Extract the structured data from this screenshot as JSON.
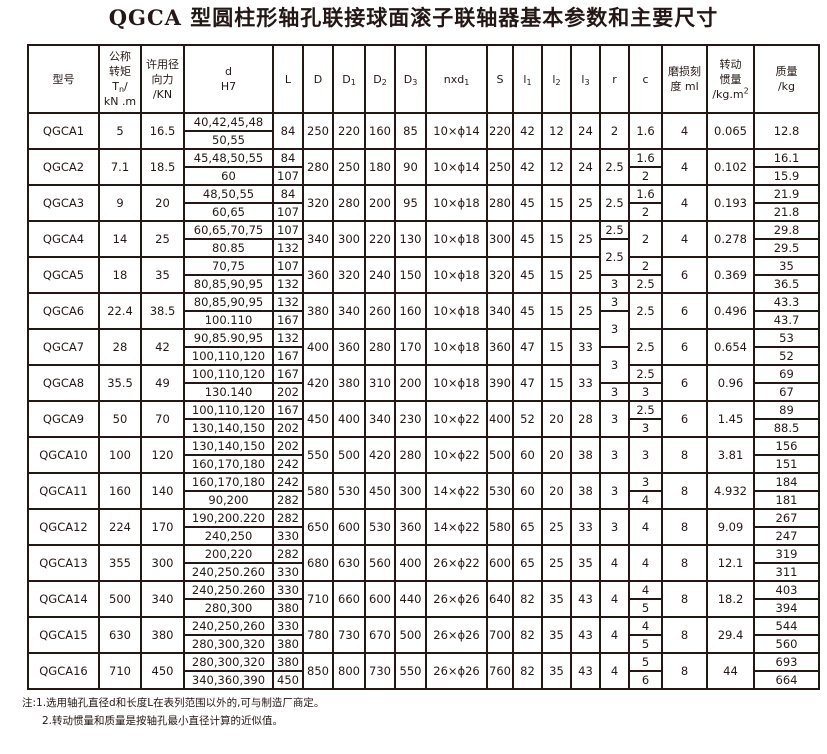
{
  "title": "QGCA 型圆柱形轴孔联接球面滚子联轴器基本参数和主要尺寸",
  "header": [
    {
      "key": "model",
      "lines": [
        [
          {
            "t": "型号"
          }
        ]
      ]
    },
    {
      "key": "tn",
      "lines": [
        [
          {
            "t": "公称"
          }
        ],
        [
          {
            "t": "转矩"
          }
        ],
        [
          {
            "t": "T"
          },
          {
            "sub": "n"
          },
          {
            "t": "/"
          }
        ],
        [
          {
            "t": "kN .m"
          }
        ]
      ]
    },
    {
      "key": "force",
      "lines": [
        [
          {
            "t": "许用径"
          }
        ],
        [
          {
            "t": "向力"
          }
        ],
        [
          {
            "t": "/KN"
          }
        ]
      ]
    },
    {
      "key": "d",
      "lines": [
        [
          {
            "t": "d"
          }
        ],
        [
          {
            "t": "H7"
          }
        ]
      ]
    },
    {
      "key": "L",
      "lines": [
        [
          {
            "t": "L"
          }
        ]
      ]
    },
    {
      "key": "D",
      "lines": [
        [
          {
            "t": "D"
          }
        ]
      ]
    },
    {
      "key": "D1",
      "lines": [
        [
          {
            "t": "D"
          },
          {
            "sub": "1"
          }
        ]
      ]
    },
    {
      "key": "D2",
      "lines": [
        [
          {
            "t": "D"
          },
          {
            "sub": "2"
          }
        ]
      ]
    },
    {
      "key": "D3",
      "lines": [
        [
          {
            "t": "D"
          },
          {
            "sub": "3"
          }
        ]
      ]
    },
    {
      "key": "nxd1",
      "lines": [
        [
          {
            "t": "nxd"
          },
          {
            "sub": "1"
          }
        ]
      ]
    },
    {
      "key": "S",
      "lines": [
        [
          {
            "t": "S"
          }
        ]
      ]
    },
    {
      "key": "l1",
      "lines": [
        [
          {
            "t": "l"
          },
          {
            "sub": "1"
          }
        ]
      ]
    },
    {
      "key": "l2",
      "lines": [
        [
          {
            "t": "l"
          },
          {
            "sub": "2"
          }
        ]
      ]
    },
    {
      "key": "l3",
      "lines": [
        [
          {
            "t": "l"
          },
          {
            "sub": "3"
          }
        ]
      ]
    },
    {
      "key": "r",
      "lines": [
        [
          {
            "t": "r"
          }
        ]
      ]
    },
    {
      "key": "c",
      "lines": [
        [
          {
            "t": "c"
          }
        ]
      ]
    },
    {
      "key": "wear",
      "lines": [
        [
          {
            "t": "磨损刻"
          }
        ],
        [
          {
            "t": "度 ml"
          }
        ]
      ]
    },
    {
      "key": "inertia",
      "lines": [
        [
          {
            "t": "转动"
          }
        ],
        [
          {
            "t": "惯量"
          }
        ],
        [
          {
            "t": "/kg.m"
          },
          {
            "sup": "2"
          }
        ]
      ]
    },
    {
      "key": "mass",
      "lines": [
        [
          {
            "t": "质量"
          }
        ],
        [
          {
            "t": "/kg"
          }
        ]
      ]
    }
  ],
  "rows": [
    {
      "model": "QGCA1",
      "tn": "5",
      "force": "16.5",
      "d": [
        "40,42,45,48",
        "50,55"
      ],
      "L": "84",
      "D": "250",
      "D1": "220",
      "D2": "160",
      "D3": "85",
      "nxd1": "10×ϕ14",
      "S": "220",
      "l1": "42",
      "l2": "12",
      "l3": "24",
      "c": "1.6",
      "wear": "4",
      "inertia": "0.065",
      "mass": "12.8"
    },
    {
      "model": "QGCA2",
      "tn": "7.1",
      "force": "18.5",
      "d": [
        "45,48,50,55",
        "60"
      ],
      "L": [
        "84",
        "107"
      ],
      "D": "280",
      "D1": "250",
      "D2": "180",
      "D3": "90",
      "nxd1": "10×ϕ14",
      "S": "250",
      "l1": "42",
      "l2": "12",
      "l3": "24",
      "c": [
        "1.6",
        "2"
      ],
      "wear": "4",
      "inertia": "0.102",
      "mass": [
        "16.1",
        "15.9"
      ]
    },
    {
      "model": "QGCA3",
      "tn": "9",
      "force": "20",
      "d": [
        "48,50,55",
        "60,65"
      ],
      "L": [
        "84",
        "107"
      ],
      "D": "320",
      "D1": "280",
      "D2": "200",
      "D3": "95",
      "nxd1": "10×ϕ18",
      "S": "280",
      "l1": "45",
      "l2": "15",
      "l3": "25",
      "c": [
        "1.6",
        "2"
      ],
      "wear": "4",
      "inertia": "0.193",
      "mass": [
        "21.9",
        "21.8"
      ]
    },
    {
      "model": "QGCA4",
      "tn": "14",
      "force": "25",
      "d": [
        "60,65,70,75",
        "80.85"
      ],
      "L": [
        "107",
        "132"
      ],
      "D": "340",
      "D1": "300",
      "D2": "220",
      "D3": "130",
      "nxd1": "10×ϕ18",
      "S": "300",
      "l1": "45",
      "l2": "15",
      "l3": "25",
      "c": "2",
      "wear": "4",
      "inertia": "0.278",
      "mass": [
        "29.8",
        "29.5"
      ]
    },
    {
      "model": "QGCA5",
      "tn": "18",
      "force": "35",
      "d": [
        "70,75",
        "80,85,90,95"
      ],
      "L": [
        "107",
        "132"
      ],
      "D": "360",
      "D1": "320",
      "D2": "240",
      "D3": "150",
      "nxd1": "10×ϕ18",
      "S": "320",
      "l1": "45",
      "l2": "15",
      "l3": "25",
      "c": [
        "2",
        "2.5"
      ],
      "wear": "6",
      "inertia": "0.369",
      "mass": [
        "35",
        "36.5"
      ]
    },
    {
      "model": "QGCA6",
      "tn": "22.4",
      "force": "38.5",
      "d": [
        "80,85,90,95",
        "100.110"
      ],
      "L": [
        "132",
        "167"
      ],
      "D": "380",
      "D1": "340",
      "D2": "260",
      "D3": "160",
      "nxd1": "10×ϕ18",
      "S": "340",
      "l1": "45",
      "l2": "15",
      "l3": "25",
      "c": "2.5",
      "wear": "6",
      "inertia": "0.496",
      "mass": [
        "43.3",
        "43.7"
      ]
    },
    {
      "model": "QGCA7",
      "tn": "28",
      "force": "42",
      "d": [
        "90,85.90,95",
        "100,110,120"
      ],
      "L": [
        "132",
        "167"
      ],
      "D": "400",
      "D1": "360",
      "D2": "280",
      "D3": "170",
      "nxd1": "10×ϕ18",
      "S": "360",
      "l1": "47",
      "l2": "15",
      "l3": "33",
      "c": "2.5",
      "wear": "6",
      "inertia": "0.654",
      "mass": [
        "53",
        "52"
      ]
    },
    {
      "model": "QGCA8",
      "tn": "35.5",
      "force": "49",
      "d": [
        "100,110,120",
        "130.140"
      ],
      "L": [
        "167",
        "202"
      ],
      "D": "420",
      "D1": "380",
      "D2": "310",
      "D3": "200",
      "nxd1": "10×ϕ18",
      "S": "390",
      "l1": "47",
      "l2": "15",
      "l3": "33",
      "c": [
        "2.5",
        "3"
      ],
      "wear": "6",
      "inertia": "0.96",
      "mass": [
        "69",
        "67"
      ]
    },
    {
      "model": "QGCA9",
      "tn": "50",
      "force": "70",
      "d": [
        "100,110,120",
        "130,140,150"
      ],
      "L": [
        "167",
        "202"
      ],
      "D": "450",
      "D1": "400",
      "D2": "340",
      "D3": "230",
      "nxd1": "10×ϕ22",
      "S": "400",
      "l1": "52",
      "l2": "20",
      "l3": "28",
      "c": [
        "2.5",
        "3"
      ],
      "wear": "6",
      "inertia": "1.45",
      "mass": [
        "89",
        "88.5"
      ]
    },
    {
      "model": "QGCA10",
      "tn": "100",
      "force": "120",
      "d": [
        "130,140,150",
        "160,170,180"
      ],
      "L": [
        "202",
        "242"
      ],
      "D": "550",
      "D1": "500",
      "D2": "420",
      "D3": "280",
      "nxd1": "10×ϕ22",
      "S": "500",
      "l1": "60",
      "l2": "20",
      "l3": "38",
      "c": "3",
      "wear": "8",
      "inertia": "3.81",
      "mass": [
        "156",
        "151"
      ]
    },
    {
      "model": "QGCA11",
      "tn": "160",
      "force": "140",
      "d": [
        "160,170,180",
        "90,200"
      ],
      "L": [
        "242",
        "282"
      ],
      "D": "580",
      "D1": "530",
      "D2": "450",
      "D3": "300",
      "nxd1": "14×ϕ22",
      "S": "530",
      "l1": "60",
      "l2": "20",
      "l3": "38",
      "c": [
        "3",
        "4"
      ],
      "wear": "8",
      "inertia": "4.932",
      "mass": [
        "184",
        "181"
      ]
    },
    {
      "model": "QGCA12",
      "tn": "224",
      "force": "170",
      "d": [
        "190,200.220",
        "240,250"
      ],
      "L": [
        "282",
        "330"
      ],
      "D": "650",
      "D1": "600",
      "D2": "530",
      "D3": "360",
      "nxd1": "14×ϕ22",
      "S": "580",
      "l1": "65",
      "l2": "25",
      "l3": "33",
      "c": "4",
      "wear": "8",
      "inertia": "9.09",
      "mass": [
        "267",
        "247"
      ]
    },
    {
      "model": "QGCA13",
      "tn": "355",
      "force": "300",
      "d": [
        "200,220",
        "240,250.260"
      ],
      "L": [
        "282",
        "330"
      ],
      "D": "680",
      "D1": "630",
      "D2": "560",
      "D3": "400",
      "nxd1": "26×ϕ22",
      "S": "600",
      "l1": "65",
      "l2": "25",
      "l3": "35",
      "c": "4",
      "wear": "8",
      "inertia": "12.1",
      "mass": [
        "319",
        "311"
      ]
    },
    {
      "model": "QGCA14",
      "tn": "500",
      "force": "340",
      "d": [
        "240,250.260",
        "280,300"
      ],
      "L": [
        "330",
        "380"
      ],
      "D": "710",
      "D1": "660",
      "D2": "600",
      "D3": "440",
      "nxd1": "26×ϕ26",
      "S": "640",
      "l1": "82",
      "l2": "35",
      "l3": "43",
      "c": [
        "4",
        "5"
      ],
      "wear": "8",
      "inertia": "18.2",
      "mass": [
        "403",
        "394"
      ]
    },
    {
      "model": "QGCA15",
      "tn": "630",
      "force": "380",
      "d": [
        "240,250,260",
        "280,300,320"
      ],
      "L": [
        "330",
        "380"
      ],
      "D": "780",
      "D1": "730",
      "D2": "670",
      "D3": "500",
      "nxd1": "26×ϕ26",
      "S": "700",
      "l1": "82",
      "l2": "35",
      "l3": "43",
      "c": [
        "4",
        "5"
      ],
      "wear": "8",
      "inertia": "29.4",
      "mass": [
        "544",
        "560"
      ]
    },
    {
      "model": "QGCA16",
      "tn": "710",
      "force": "450",
      "d": [
        "280,300,320",
        "340,360,390"
      ],
      "L": [
        "380",
        "450"
      ],
      "D": "850",
      "D1": "800",
      "D2": "730",
      "D3": "550",
      "nxd1": "26×ϕ26",
      "S": "760",
      "l1": "82",
      "l2": "35",
      "l3": "43",
      "c": [
        "5",
        "6"
      ],
      "wear": "8",
      "inertia": "44",
      "mass": [
        "693",
        "664"
      ]
    }
  ],
  "r_cells": [
    {
      "value": "2",
      "span": 2
    },
    {
      "value": "2.5",
      "span": 2
    },
    {
      "value": "2.5",
      "span": 2
    },
    {
      "value": "2.5",
      "span": 1
    },
    {
      "value": "2.5",
      "span": 2
    },
    {
      "value": "3",
      "span": 1
    },
    {
      "value": "3",
      "span": 1
    },
    {
      "value": "3",
      "span": 2
    },
    {
      "value": "3",
      "span": 2
    },
    {
      "value": "3",
      "span": 1
    },
    {
      "value": "3",
      "span": 2
    },
    {
      "value": "3",
      "span": 2
    },
    {
      "value": "3",
      "span": 2
    },
    {
      "value": "3",
      "span": 2
    },
    {
      "value": "4",
      "span": 2
    },
    {
      "value": "4",
      "span": 2
    },
    {
      "value": "4",
      "span": 2
    },
    {
      "value": "4",
      "span": 2
    }
  ],
  "notes": [
    "注:1.选用轴孔直径d和长度L在表列范围以外的,可与制造厂商定。",
    "2.转动惯量和质量是按轴孔最小直径计算的近似值。"
  ]
}
